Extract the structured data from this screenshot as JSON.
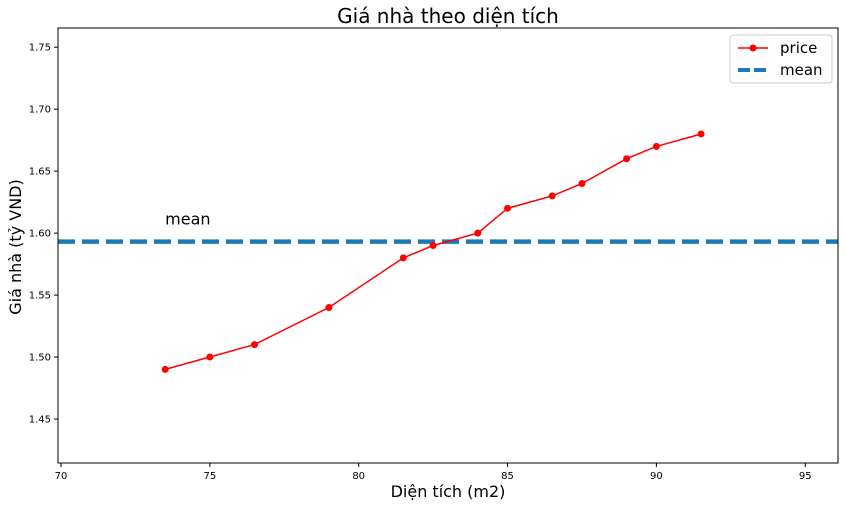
{
  "chart_data": {
    "type": "line",
    "title": "Giá nhà theo diện tích",
    "xlabel": "Diện tích (m2)",
    "ylabel": "Giá nhà (tỷ VND)",
    "xlim": [
      69.9,
      96.1
    ],
    "ylim": [
      1.4145,
      1.7655
    ],
    "xticks": [
      70,
      75,
      80,
      85,
      90,
      95
    ],
    "yticks": [
      1.45,
      1.5,
      1.55,
      1.6,
      1.65,
      1.7,
      1.75
    ],
    "xtick_labels": [
      "70",
      "75",
      "80",
      "85",
      "90",
      "95"
    ],
    "ytick_labels": [
      "1.45",
      "1.50",
      "1.55",
      "1.60",
      "1.65",
      "1.70",
      "1.75"
    ],
    "grid": false,
    "legend_position": "top-right",
    "series": [
      {
        "name": "price",
        "style": "line-with-markers",
        "color": "#ff0000",
        "x": [
          73.5,
          75,
          76.5,
          79,
          81.5,
          82.5,
          84,
          85,
          86.5,
          87.5,
          89,
          90,
          91.5
        ],
        "y": [
          1.49,
          1.5,
          1.51,
          1.54,
          1.58,
          1.59,
          1.6,
          1.62,
          1.63,
          1.64,
          1.66,
          1.67,
          1.68
        ]
      },
      {
        "name": "mean",
        "style": "dashed-horizontal",
        "color": "#1f77b4",
        "y": 1.5931
      }
    ],
    "annotations": [
      {
        "text": "mean",
        "x": 73.5,
        "y": 1.607
      }
    ]
  }
}
